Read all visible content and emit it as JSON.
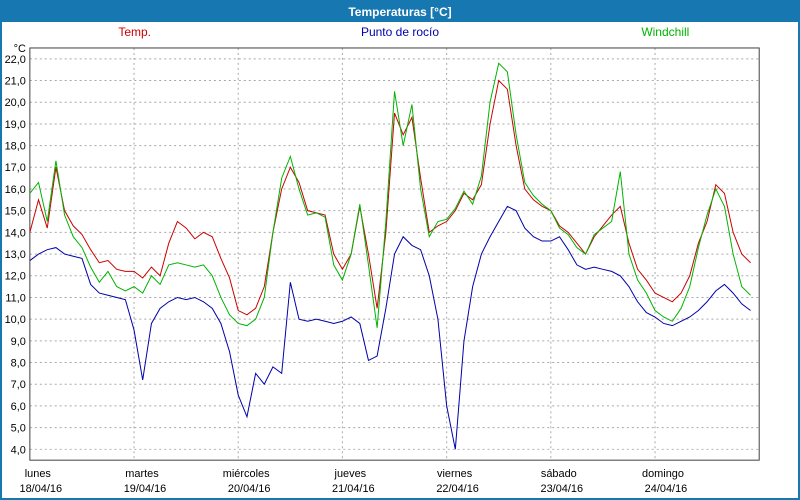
{
  "title": "Temperaturas [°C]",
  "chart_data": {
    "type": "line",
    "title": "Temperaturas [°C]",
    "unit": "°C",
    "ylim": [
      3.5,
      22.5
    ],
    "y_axis": {
      "min": 4,
      "max": 22,
      "step": 1,
      "decimal_separator": ","
    },
    "grid": "dashed",
    "legend_position": "top",
    "x_hours_step": 2,
    "days": [
      {
        "name": "lunes",
        "date": "18/04/16"
      },
      {
        "name": "martes",
        "date": "19/04/16"
      },
      {
        "name": "miércoles",
        "date": "20/04/16"
      },
      {
        "name": "jueves",
        "date": "21/04/16"
      },
      {
        "name": "viernes",
        "date": "22/04/16"
      },
      {
        "name": "sábado",
        "date": "23/04/16"
      },
      {
        "name": "domingo",
        "date": "24/04/16"
      }
    ],
    "series": [
      {
        "name": "Temp.",
        "color": "#cc0000",
        "values": [
          14.0,
          15.5,
          14.2,
          17.0,
          15.0,
          14.3,
          13.9,
          13.2,
          12.6,
          12.7,
          12.3,
          12.2,
          12.2,
          11.9,
          12.4,
          12.0,
          13.5,
          14.5,
          14.2,
          13.7,
          14.0,
          13.8,
          12.8,
          11.9,
          10.4,
          10.2,
          10.5,
          11.5,
          14.0,
          16.0,
          17.0,
          16.3,
          15.0,
          14.9,
          14.8,
          13.0,
          12.3,
          13.0,
          15.2,
          13.0,
          10.5,
          14.0,
          19.5,
          18.5,
          19.3,
          16.5,
          14.0,
          14.3,
          14.5,
          15.0,
          15.8,
          15.5,
          16.2,
          19.0,
          21.0,
          20.6,
          18.0,
          16.0,
          15.5,
          15.2,
          15.0,
          14.3,
          14.0,
          13.5,
          13.0,
          13.8,
          14.3,
          14.8,
          15.2,
          13.5,
          12.3,
          11.8,
          11.2,
          11.0,
          10.8,
          11.2,
          12.0,
          13.5,
          14.5,
          16.2,
          15.8,
          14.0,
          13.0,
          12.6
        ]
      },
      {
        "name": "Punto de rocío",
        "color": "#0000aa",
        "values": [
          12.7,
          13.0,
          13.2,
          13.3,
          13.0,
          12.9,
          12.8,
          11.6,
          11.2,
          11.1,
          11.0,
          10.9,
          9.5,
          7.2,
          9.8,
          10.5,
          10.8,
          11.0,
          10.9,
          11.0,
          10.8,
          10.5,
          9.8,
          8.5,
          6.5,
          5.5,
          7.5,
          7.0,
          7.8,
          7.5,
          11.7,
          10.0,
          9.9,
          10.0,
          9.9,
          9.8,
          9.9,
          10.1,
          9.8,
          8.1,
          8.3,
          10.5,
          13.0,
          13.8,
          13.4,
          13.2,
          12.0,
          10.0,
          6.0,
          4.0,
          9.0,
          11.5,
          13.0,
          13.8,
          14.5,
          15.2,
          15.0,
          14.2,
          13.8,
          13.6,
          13.6,
          13.8,
          13.2,
          12.5,
          12.3,
          12.4,
          12.3,
          12.2,
          12.0,
          11.5,
          10.8,
          10.3,
          10.1,
          9.8,
          9.7,
          9.9,
          10.1,
          10.4,
          10.8,
          11.3,
          11.6,
          11.2,
          10.7,
          10.4
        ]
      },
      {
        "name": "Windchill",
        "color": "#00b400",
        "values": [
          15.8,
          16.3,
          14.5,
          17.3,
          14.8,
          13.8,
          13.3,
          12.4,
          11.7,
          12.2,
          11.5,
          11.3,
          11.5,
          11.2,
          12.0,
          11.6,
          12.5,
          12.6,
          12.5,
          12.4,
          12.5,
          12.0,
          11.0,
          10.2,
          9.8,
          9.7,
          10.0,
          11.0,
          14.0,
          16.5,
          17.5,
          16.0,
          14.8,
          14.9,
          14.7,
          12.5,
          11.8,
          13.0,
          15.3,
          12.5,
          9.6,
          14.5,
          20.5,
          18.0,
          19.9,
          16.0,
          13.8,
          14.5,
          14.6,
          15.1,
          15.9,
          15.3,
          16.6,
          20.0,
          21.8,
          21.4,
          18.5,
          16.3,
          15.7,
          15.3,
          15.0,
          14.2,
          13.9,
          13.3,
          13.0,
          13.9,
          14.2,
          14.5,
          16.8,
          13.0,
          11.8,
          11.2,
          10.4,
          10.1,
          9.9,
          10.5,
          11.5,
          13.3,
          14.8,
          16.0,
          15.2,
          13.0,
          11.5,
          11.1
        ]
      }
    ]
  }
}
